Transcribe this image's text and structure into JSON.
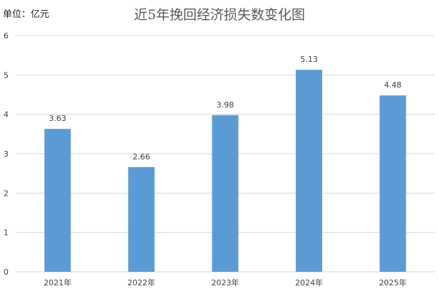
{
  "unit_label": "单位：亿元",
  "chart_data": {
    "type": "bar",
    "title": "近5年挽回经济损失数变化图",
    "categories": [
      "2021年",
      "2022年",
      "2023年",
      "2024年",
      "2025年"
    ],
    "values": [
      3.63,
      2.66,
      3.98,
      5.13,
      4.48
    ],
    "data_labels": [
      "3.63",
      "2.66",
      "3.98",
      "5.13",
      "4.48"
    ],
    "ylim": [
      0,
      6
    ],
    "yticks": [
      "0",
      "1",
      "2",
      "3",
      "4",
      "5",
      "6"
    ],
    "grid": true,
    "legend": "none",
    "bar_color": "#5b9bd5",
    "grid_color": "#d9d9d9",
    "label_color": "#404040"
  }
}
